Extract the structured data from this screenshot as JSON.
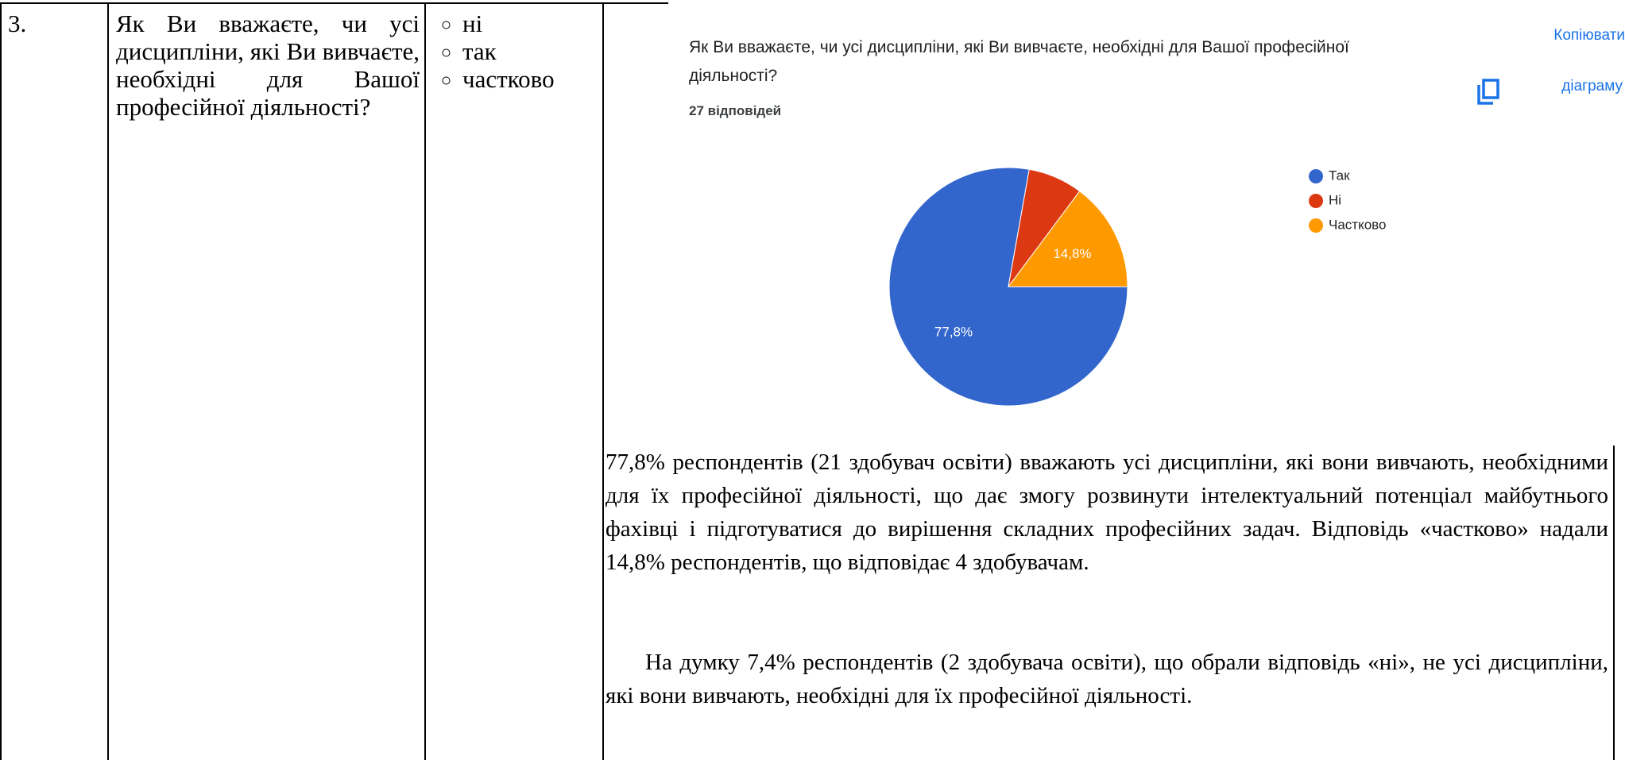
{
  "row": {
    "number": "3.",
    "question": "Як Ви вважаєте, чи усі дисципліни, які Ви вивчаєте, необхідні для Вашої професійної діяльності?",
    "options": [
      "ні",
      "так",
      "частково"
    ]
  },
  "chart_data": {
    "type": "pie",
    "title": "Як Ви вважаєте, чи усі дисципліни, які Ви вивчаєте, необхідні для Вашої професійної діяльності?",
    "subtitle": "27 відповідей",
    "categories": [
      "Так",
      "Ні",
      "Частково"
    ],
    "values": [
      77.8,
      7.4,
      14.8
    ],
    "value_labels": [
      "77,8%",
      null,
      "14,8%"
    ],
    "colors": [
      "#3366cc",
      "#dc3912",
      "#ff9900"
    ],
    "legend": "right"
  },
  "copy_button": {
    "line1": "Копіювати",
    "line2": "діаграму"
  },
  "paragraphs": [
    "77,8% респондентів (21 здобувач освіти) вважають усі дисципліни, які вони вивчають, необхідними для їх професійної діяльності, що дає змогу розвинути інтелектуальний потенціал майбутнього фахівці і підготуватися до вирішення складних професійних задач. Відповідь «частково» надали 14,8% респондентів, що відповідає 4 здобувачам.",
    "На думку 7,4% респондентів (2 здобувача освіти), що обрали відповідь «ні», не усі дисципліни, які вони вивчають, необхідні для їх професійної діяльності."
  ]
}
